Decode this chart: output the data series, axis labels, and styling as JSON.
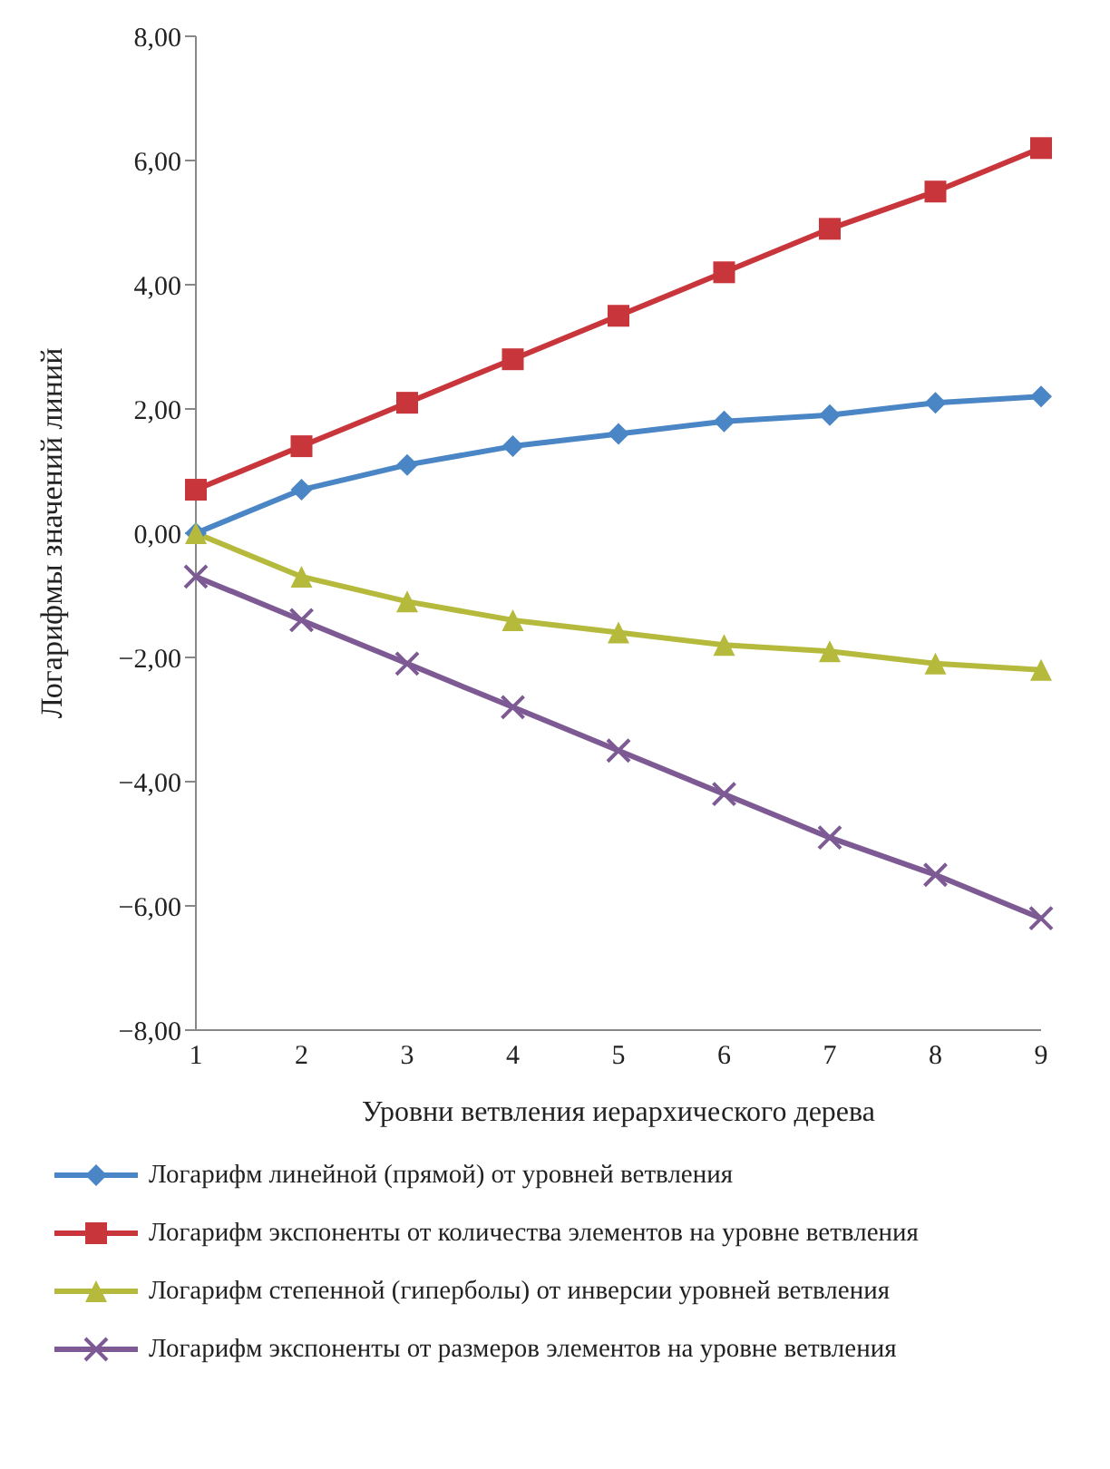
{
  "chart_data": {
    "type": "line",
    "xlabel": "Уровни ветвления иерархического дерева",
    "ylabel": "Логарифмы значений линий",
    "categories": [
      "1",
      "2",
      "3",
      "4",
      "5",
      "6",
      "7",
      "8",
      "9"
    ],
    "series": [
      {
        "name": "Логарифм линейной (прямой) от уровней ветвления",
        "color": "#4a86c5",
        "marker": "diamond",
        "values": [
          0,
          0.7,
          1.1,
          1.4,
          1.6,
          1.8,
          1.9,
          2.1,
          2.2
        ]
      },
      {
        "name": "Логарифм экспоненты от количества элементов на уровне ветвления",
        "color": "#c8363c",
        "marker": "square",
        "values": [
          0.7,
          1.4,
          2.1,
          2.8,
          3.5,
          4.2,
          4.9,
          5.5,
          6.2
        ]
      },
      {
        "name": "Логарифм степенной (гиперболы) от инверсии уровней ветвления",
        "color": "#b5ba3c",
        "marker": "triangle",
        "values": [
          0,
          -0.7,
          -1.1,
          -1.4,
          -1.6,
          -1.8,
          -1.9,
          -2.1,
          -2.2
        ]
      },
      {
        "name": "Логарифм экспоненты от размеров элементов на уровне ветвления",
        "color": "#7d5a93",
        "marker": "cross",
        "values": [
          -0.7,
          -1.4,
          -2.1,
          -2.8,
          -3.5,
          -4.2,
          -4.9,
          -5.5,
          -6.2
        ]
      }
    ],
    "ylim": [
      -8,
      8
    ],
    "yticks": [
      {
        "value": -8,
        "label": "−8,00"
      },
      {
        "value": -6,
        "label": "−6,00"
      },
      {
        "value": -4,
        "label": "−4,00"
      },
      {
        "value": -2,
        "label": "−2,00"
      },
      {
        "value": 0,
        "label": "0,00"
      },
      {
        "value": 2,
        "label": "2,00"
      },
      {
        "value": 4,
        "label": "4,00"
      },
      {
        "value": 6,
        "label": "6,00"
      },
      {
        "value": 8,
        "label": "8,00"
      }
    ],
    "grid": false,
    "legend": "bottom",
    "line_style": "solid"
  }
}
